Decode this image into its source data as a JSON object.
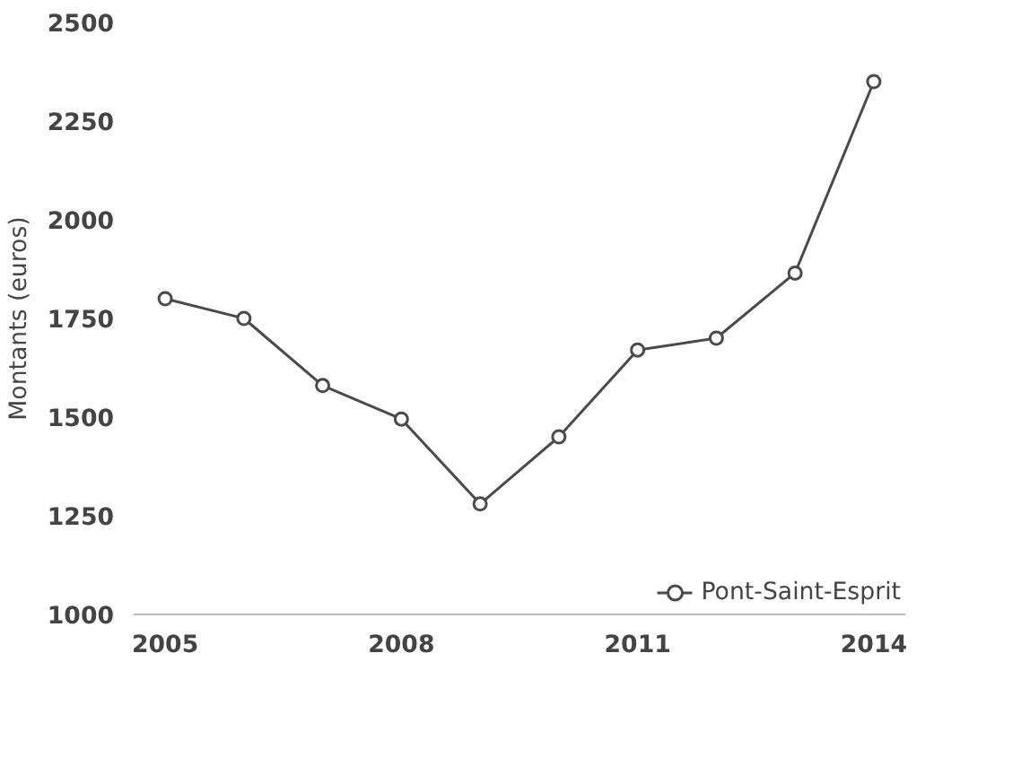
{
  "chart_data": {
    "type": "line",
    "ylabel": "Montants (euros)",
    "x": [
      2005,
      2006,
      2007,
      2008,
      2009,
      2010,
      2011,
      2012,
      2013,
      2014
    ],
    "series": [
      {
        "name": "Pont-Saint-Esprit",
        "color": "#4a4a4a",
        "values": [
          1800,
          1750,
          1580,
          1495,
          1280,
          1450,
          1670,
          1700,
          1865,
          2350
        ]
      }
    ],
    "xlim": [
      2004.6,
      2014.4
    ],
    "xticks": [
      2005,
      2008,
      2011,
      2014
    ],
    "ylim": [
      1000,
      2500
    ],
    "yticks": [
      1000,
      1250,
      1500,
      1750,
      2000,
      2250,
      2500
    ],
    "grid": false,
    "legend": "bottom right",
    "marker": "circle",
    "line_style": "solid"
  }
}
